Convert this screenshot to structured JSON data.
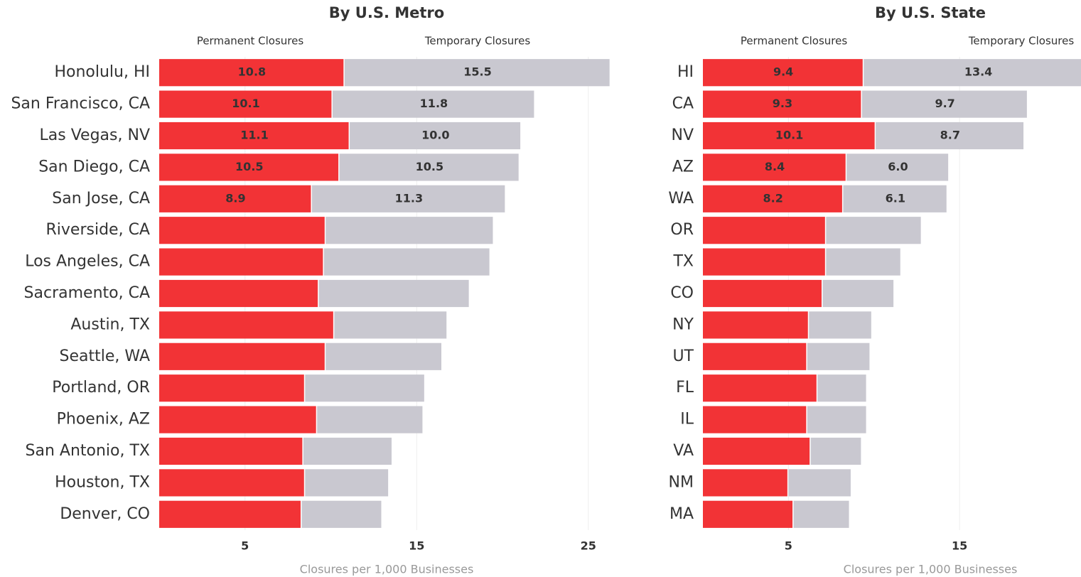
{
  "chart_data": [
    {
      "type": "bar",
      "stacked": true,
      "title": "By U.S. Metro",
      "x_label": "Closures per 1,000 Businesses",
      "categories": [
        "Honolulu, HI",
        "San Francisco, CA",
        "Las Vegas, NV",
        "San Diego, CA",
        "San Jose, CA",
        "Riverside, CA",
        "Los Angeles, CA",
        "Sacramento, CA",
        "Austin, TX",
        "Seattle, WA",
        "Portland, OR",
        "Phoenix, AZ",
        "San Antonio, TX",
        "Houston, TX",
        "Denver, CO"
      ],
      "series": [
        {
          "name": "Permanent Closures",
          "color": "#f23336",
          "values": [
            10.8,
            10.1,
            11.1,
            10.5,
            8.9,
            9.7,
            9.6,
            9.3,
            10.2,
            9.7,
            8.5,
            9.2,
            8.4,
            8.5,
            8.3
          ],
          "value_labels": [
            "10.8",
            "10.1",
            "11.1",
            "10.5",
            "8.9",
            null,
            null,
            null,
            null,
            null,
            null,
            null,
            null,
            null,
            null
          ]
        },
        {
          "name": "Temporary Closures",
          "color": "#c9c8d0",
          "values": [
            15.5,
            11.8,
            10.0,
            10.5,
            11.3,
            9.8,
            9.7,
            8.8,
            6.6,
            6.8,
            7.0,
            6.2,
            5.2,
            4.9,
            4.7
          ],
          "value_labels": [
            "15.5",
            "11.8",
            "10.0",
            "10.5",
            "11.3",
            null,
            null,
            null,
            null,
            null,
            null,
            null,
            null,
            null,
            null
          ]
        }
      ],
      "xlim": [
        0,
        26.5
      ],
      "xticks": [
        5,
        15,
        25
      ],
      "grid": true
    },
    {
      "type": "bar",
      "stacked": true,
      "title": "By U.S. State",
      "x_label": "Closures per 1,000 Businesses",
      "categories": [
        "HI",
        "CA",
        "NV",
        "AZ",
        "WA",
        "OR",
        "TX",
        "CO",
        "NY",
        "UT",
        "FL",
        "IL",
        "VA",
        "NM",
        "MA"
      ],
      "series": [
        {
          "name": "Permanent Closures",
          "color": "#f23336",
          "values": [
            9.4,
            9.3,
            10.1,
            8.4,
            8.2,
            7.2,
            7.2,
            7.0,
            6.2,
            6.1,
            6.7,
            6.1,
            6.3,
            5.0,
            5.3
          ],
          "value_labels": [
            "9.4",
            "9.3",
            "10.1",
            "8.4",
            "8.2",
            null,
            null,
            null,
            null,
            null,
            null,
            null,
            null,
            null,
            null
          ]
        },
        {
          "name": "Temporary Closures",
          "color": "#c9c8d0",
          "values": [
            13.4,
            9.7,
            8.7,
            6.0,
            6.1,
            5.6,
            4.4,
            4.2,
            3.7,
            3.7,
            2.9,
            3.5,
            3.0,
            3.7,
            3.3
          ],
          "value_labels": [
            "13.4",
            "9.7",
            "8.7",
            "6.0",
            "6.1",
            null,
            null,
            null,
            null,
            null,
            null,
            null,
            null,
            null,
            null
          ]
        }
      ],
      "xlim": [
        0,
        22.1
      ],
      "xticks": [
        5,
        15
      ],
      "grid": true
    }
  ]
}
